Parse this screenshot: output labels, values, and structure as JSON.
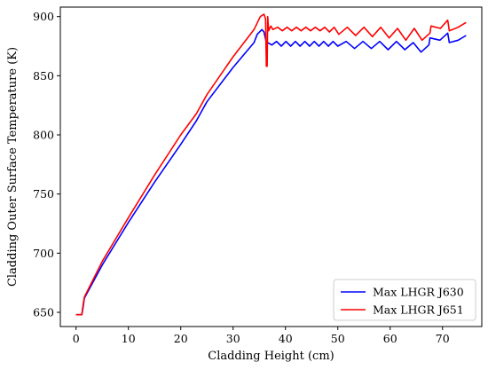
{
  "chart_data": {
    "type": "line",
    "title": "",
    "xlabel": "Cladding Height (cm)",
    "ylabel": "Cladding Outer Surface Temperature (K)",
    "xlim": [
      -3,
      77.5
    ],
    "ylim": [
      638,
      908
    ],
    "x_ticks": [
      0,
      10,
      20,
      30,
      40,
      50,
      60,
      70
    ],
    "y_ticks": [
      650,
      700,
      750,
      800,
      850,
      900
    ],
    "grid": false,
    "legend_position": "bottom-right",
    "series": [
      {
        "name": "Max LHGR J630",
        "color": "#0000ff",
        "x": [
          0,
          1.1,
          1.3,
          1.6,
          5,
          10,
          15,
          20,
          23,
          25,
          30,
          34,
          34.6,
          35.5,
          35.9,
          36.3,
          36.6,
          37.4,
          38.3,
          39.2,
          40.1,
          41,
          41.9,
          42.8,
          43.7,
          44.6,
          45.5,
          46.4,
          47.3,
          48.2,
          49.1,
          50,
          51.6,
          53.2,
          54.8,
          56.4,
          58,
          59.6,
          61.2,
          62.8,
          64.4,
          65.9,
          67.4,
          67.6,
          69.5,
          71,
          71.3,
          73,
          74.5
        ],
        "y": [
          648,
          648,
          653,
          662,
          690,
          726,
          760,
          792,
          812,
          828,
          857,
          878,
          885,
          889,
          887,
          879,
          878,
          876,
          879,
          875,
          879,
          875,
          879,
          875,
          879,
          875,
          879,
          875,
          879,
          875,
          879,
          875,
          879,
          873,
          879,
          873,
          879,
          872,
          879,
          872,
          878,
          870,
          876,
          882,
          880,
          886,
          878,
          880,
          884
        ]
      },
      {
        "name": "Max LHGR J651",
        "color": "#ff0000",
        "x": [
          0,
          1.1,
          1.3,
          1.6,
          5,
          10,
          15,
          20,
          23,
          25,
          30,
          34,
          35.2,
          35.9,
          36.2,
          36.35,
          36.5,
          36.6,
          36.8,
          37.2,
          37.6,
          38.5,
          39.4,
          40.3,
          41.2,
          42.1,
          43,
          43.9,
          44.8,
          45.7,
          46.6,
          47.5,
          48.4,
          49.3,
          50.2,
          51.8,
          53.4,
          55,
          56.6,
          58.2,
          59.8,
          61.4,
          63,
          64.6,
          66.1,
          67.6,
          67.8,
          69.6,
          71,
          71.3,
          73,
          74.5
        ],
        "y": [
          648,
          648,
          655,
          663,
          693,
          730,
          766,
          800,
          818,
          834,
          866,
          889,
          900,
          902,
          898,
          858,
          858,
          900,
          888,
          892,
          889,
          891,
          888,
          891,
          888,
          891,
          888,
          891,
          888,
          891,
          888,
          891,
          887,
          891,
          885,
          891,
          884,
          891,
          883,
          891,
          882,
          890,
          880,
          890,
          880,
          886,
          892,
          890,
          897,
          888,
          891,
          895
        ]
      }
    ]
  }
}
